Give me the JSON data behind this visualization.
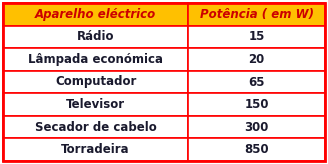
{
  "header": [
    "Aparelho eléctrico",
    "Potência ( em W)"
  ],
  "rows": [
    [
      "Rádio",
      "15"
    ],
    [
      "Lâmpada económica",
      "20"
    ],
    [
      "Computador",
      "65"
    ],
    [
      "Televisor",
      "150"
    ],
    [
      "Secador de cabelo",
      "300"
    ],
    [
      "Torradeira",
      "850"
    ]
  ],
  "header_bg": "#FFC000",
  "header_text_color": "#CC0000",
  "row_bg": "#FFFFFF",
  "row_text_color": "#1a1a2e",
  "border_color": "#FF0000",
  "outer_border_color": "#FF0000",
  "font_size": 8.5,
  "header_font_size": 8.5,
  "col_split": 0.575
}
